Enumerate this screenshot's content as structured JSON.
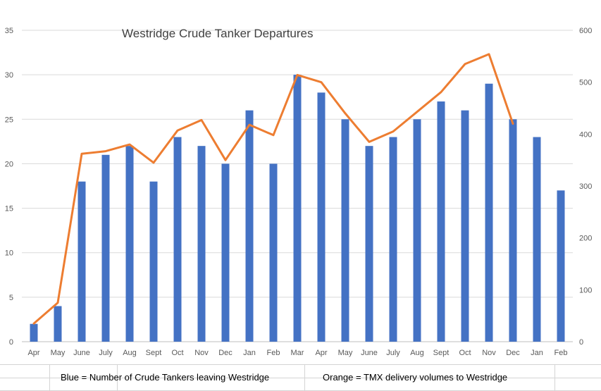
{
  "chart_data": {
    "type": "bar+line",
    "title": "Westridge Crude Tanker Departures",
    "categories": [
      "Apr",
      "May",
      "June",
      "July",
      "Aug",
      "Sept",
      "Oct",
      "Nov",
      "Dec",
      "Jan",
      "Feb",
      "Mar",
      "Apr",
      "May",
      "June",
      "July",
      "Aug",
      "Sept",
      "Oct",
      "Nov",
      "Dec",
      "Jan",
      "Feb"
    ],
    "series": [
      {
        "name": "Number of Crude Tankers leaving Westridge",
        "type": "bar",
        "axis": "left",
        "color": "#4472C4",
        "values": [
          2,
          4,
          18,
          21,
          22,
          18,
          23,
          22,
          20,
          26,
          20,
          30,
          28,
          25,
          22,
          23,
          25,
          27,
          26,
          29,
          25,
          23,
          17
        ]
      },
      {
        "name": "TMX delivery volumes to Westridge",
        "type": "line",
        "axis": "right",
        "color": "#ED7D31",
        "values": [
          35,
          75,
          362,
          367,
          380,
          345,
          407,
          427,
          350,
          418,
          398,
          514,
          500,
          440,
          385,
          405,
          443,
          481,
          535,
          554,
          420,
          null,
          null
        ]
      }
    ],
    "y_left": {
      "min": 0,
      "max": 35,
      "ticks": [
        0,
        5,
        10,
        15,
        20,
        25,
        30,
        35
      ]
    },
    "y_right": {
      "min": 0,
      "max": 600,
      "ticks": [
        0,
        100,
        200,
        300,
        400,
        500,
        600
      ]
    },
    "grid": true
  },
  "footer": {
    "blue_note": "Blue = Number of Crude Tankers leaving Westridge",
    "orange_note": "Orange = TMX delivery volumes to Westridge"
  }
}
